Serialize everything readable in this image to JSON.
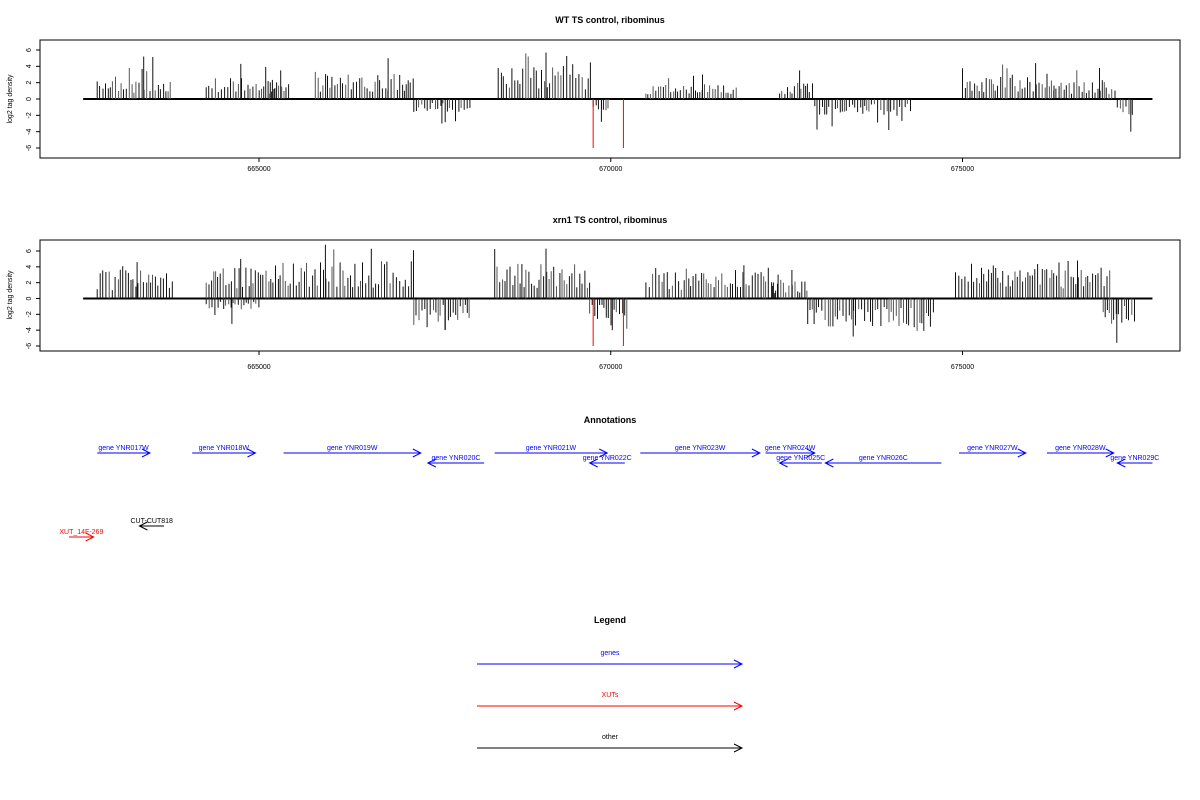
{
  "chart_data": [
    {
      "type": "bar",
      "title": "WT TS control, ribominus",
      "ylabel": "log2 tag density",
      "xlabel": "",
      "xlim": [
        662500,
        677700
      ],
      "ylim": [
        -6,
        7
      ],
      "x_ticks": [
        "665000",
        "670000",
        "675000"
      ],
      "y_ticks": [
        "6",
        "4",
        "2",
        "0",
        "-2",
        "-4",
        "-6"
      ],
      "baseline": 0,
      "regions": [
        {
          "start": 662700,
          "end": 663750,
          "strand": "+",
          "peak": 5.2,
          "base": 1.6
        },
        {
          "start": 664250,
          "end": 665250,
          "strand": "+",
          "peak": 4.3,
          "base": 2.0
        },
        {
          "start": 665150,
          "end": 665450,
          "strand": "+",
          "peak": 3.5,
          "base": 1.5
        },
        {
          "start": 665800,
          "end": 667200,
          "strand": "+",
          "peak": 5.0,
          "base": 2.2
        },
        {
          "start": 667200,
          "end": 668000,
          "strand": "-",
          "peak": -3.0,
          "base": -1.2
        },
        {
          "start": 668400,
          "end": 669750,
          "strand": "+",
          "peak": 5.7,
          "base": 2.8
        },
        {
          "start": 669750,
          "end": 670000,
          "strand": "-",
          "peak": -2.8,
          "base": -1.0
        },
        {
          "start": 670500,
          "end": 671800,
          "strand": "+",
          "peak": 3.0,
          "base": 1.2
        },
        {
          "start": 672400,
          "end": 672900,
          "strand": "+",
          "peak": 3.5,
          "base": 1.5
        },
        {
          "start": 672900,
          "end": 674300,
          "strand": "-",
          "peak": -3.8,
          "base": -1.4
        },
        {
          "start": 675000,
          "end": 676300,
          "strand": "+",
          "peak": 4.4,
          "base": 2.0
        },
        {
          "start": 676300,
          "end": 677200,
          "strand": "+",
          "peak": 3.8,
          "base": 1.5
        },
        {
          "start": 677200,
          "end": 677450,
          "strand": "-",
          "peak": -4.0,
          "base": -2.0
        }
      ],
      "red_marks": [
        {
          "x": 669750,
          "y": -6
        },
        {
          "x": 670180,
          "y": -6
        }
      ]
    },
    {
      "type": "bar",
      "title": "xrn1 TS control, ribominus",
      "ylabel": "log2 tag density",
      "xlabel": "",
      "xlim": [
        662500,
        677700
      ],
      "ylim": [
        -6,
        7
      ],
      "x_ticks": [
        "665000",
        "670000",
        "675000"
      ],
      "y_ticks": [
        "6",
        "4",
        "2",
        "0",
        "-2",
        "-4",
        "-6"
      ],
      "baseline": 0,
      "regions": [
        {
          "start": 662700,
          "end": 663800,
          "strand": "+",
          "peak": 4.6,
          "base": 2.6
        },
        {
          "start": 664250,
          "end": 665300,
          "strand": "+",
          "peak": 5.0,
          "base": 3.0
        },
        {
          "start": 664250,
          "end": 665000,
          "strand": "-",
          "peak": -3.2,
          "base": -1.0
        },
        {
          "start": 665300,
          "end": 667200,
          "strand": "+",
          "peak": 6.8,
          "base": 3.4
        },
        {
          "start": 667200,
          "end": 668000,
          "strand": "-",
          "peak": -4.0,
          "base": -2.0
        },
        {
          "start": 668350,
          "end": 669700,
          "strand": "+",
          "peak": 6.3,
          "base": 3.2
        },
        {
          "start": 669700,
          "end": 670250,
          "strand": "-",
          "peak": -4.0,
          "base": -2.0
        },
        {
          "start": 670500,
          "end": 672400,
          "strand": "+",
          "peak": 4.2,
          "base": 2.4
        },
        {
          "start": 672300,
          "end": 672800,
          "strand": "+",
          "peak": 3.6,
          "base": 1.6
        },
        {
          "start": 672800,
          "end": 674600,
          "strand": "-",
          "peak": -4.8,
          "base": -2.6
        },
        {
          "start": 674900,
          "end": 677100,
          "strand": "+",
          "peak": 4.8,
          "base": 2.8
        },
        {
          "start": 677000,
          "end": 677450,
          "strand": "-",
          "peak": -5.6,
          "base": -2.2
        }
      ],
      "red_marks": [
        {
          "x": 669750,
          "y": -6
        },
        {
          "x": 670180,
          "y": -6
        }
      ]
    }
  ],
  "annotations": {
    "title": "Annotations",
    "genes": [
      {
        "label": "gene YNR017W",
        "start": 662700,
        "end": 663450,
        "strand": "+",
        "row": 0
      },
      {
        "label": "gene YNR018W",
        "start": 664050,
        "end": 664950,
        "strand": "+",
        "row": 0
      },
      {
        "label": "gene YNR019W",
        "start": 665350,
        "end": 667300,
        "strand": "+",
        "row": 0
      },
      {
        "label": "gene YNR020C",
        "start": 667400,
        "end": 668200,
        "strand": "-",
        "row": 1
      },
      {
        "label": "gene YNR021W",
        "start": 668350,
        "end": 669950,
        "strand": "+",
        "row": 0
      },
      {
        "label": "gene YNR022C",
        "start": 669700,
        "end": 670200,
        "strand": "-",
        "row": 1
      },
      {
        "label": "gene YNR023W",
        "start": 670420,
        "end": 672120,
        "strand": "+",
        "row": 0
      },
      {
        "label": "gene YNR024W",
        "start": 672200,
        "end": 672900,
        "strand": "+",
        "row": 0
      },
      {
        "label": "gene YNR025C",
        "start": 672400,
        "end": 673000,
        "strand": "-",
        "row": 1
      },
      {
        "label": "gene YNR026C",
        "start": 673050,
        "end": 674700,
        "strand": "-",
        "row": 1
      },
      {
        "label": "gene YNR027W",
        "start": 674950,
        "end": 675900,
        "strand": "+",
        "row": 0
      },
      {
        "label": "gene YNR028W",
        "start": 676200,
        "end": 677150,
        "strand": "+",
        "row": 0
      },
      {
        "label": "gene YNR029C",
        "start": 677200,
        "end": 677700,
        "strand": "-",
        "row": 1
      }
    ],
    "xuts": [
      {
        "label": "XUT_14F-269",
        "start": 662300,
        "end": 662650,
        "strand": "+"
      }
    ],
    "other": [
      {
        "label": "CUT-CUT818",
        "start": 663300,
        "end": 663650,
        "strand": "-"
      }
    ]
  },
  "legend": {
    "title": "Legend",
    "items": [
      {
        "label": "genes",
        "color": "#0000ff"
      },
      {
        "label": "XUTs",
        "color": "#ff0000"
      },
      {
        "label": "other",
        "color": "#000000"
      }
    ]
  },
  "colors": {
    "genes": "#0000ff",
    "xuts": "#ff0000",
    "other": "#000000",
    "marks": "#000000",
    "highlight": "#ff0000"
  }
}
